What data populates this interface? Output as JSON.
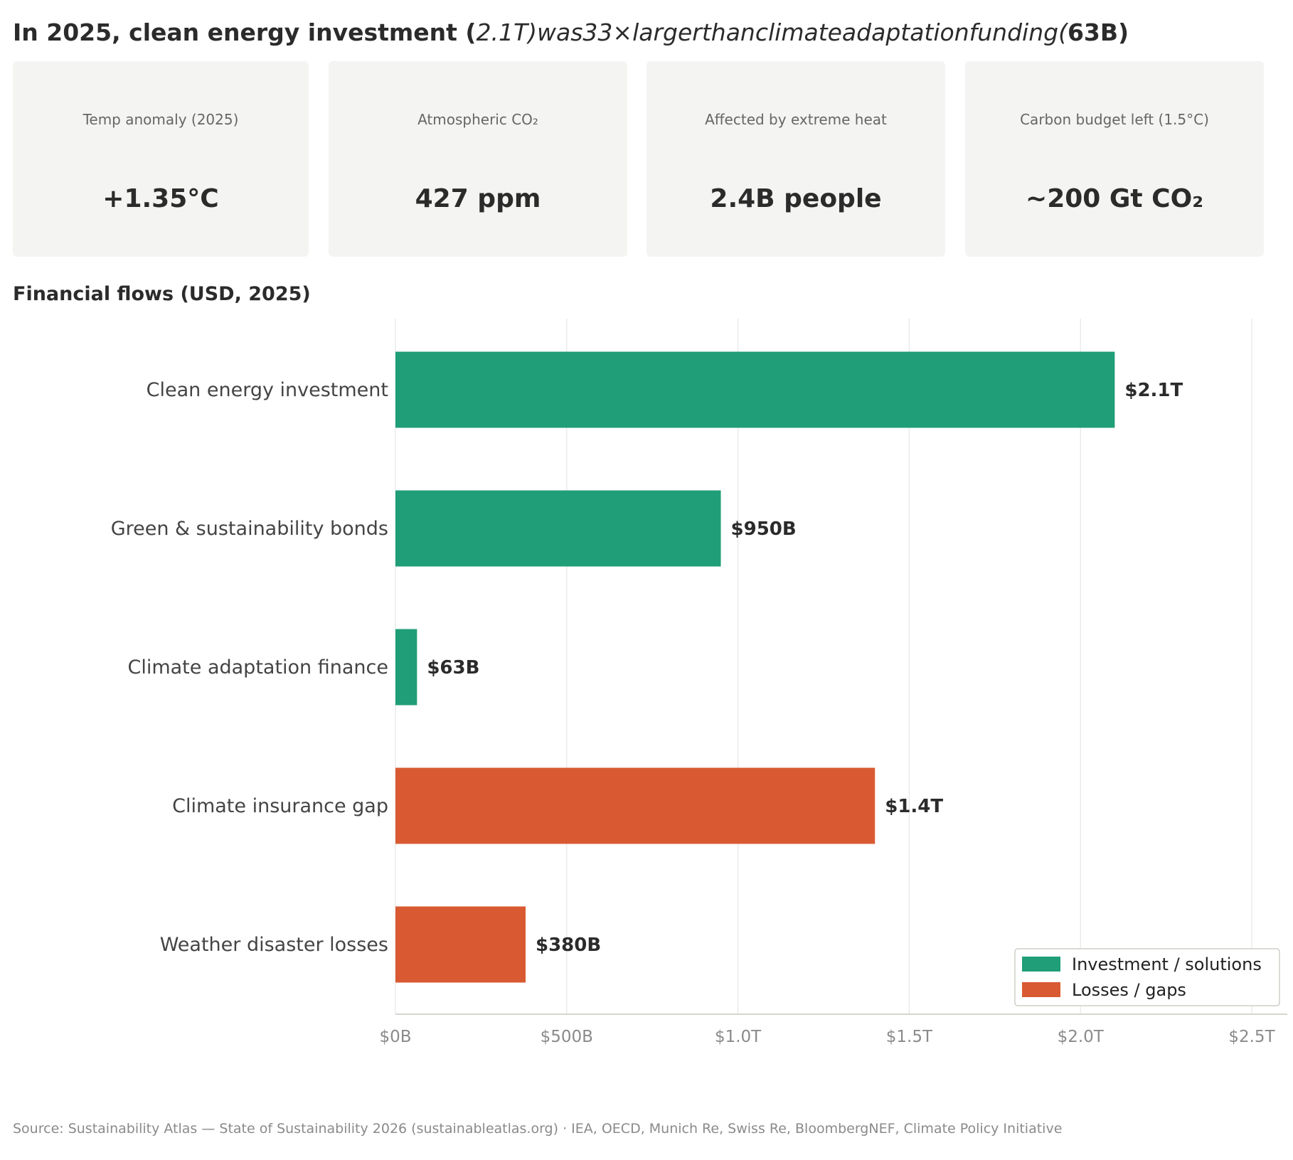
{
  "headline": {
    "prefix": "In 2025, clean energy investment (",
    "middle": "2.1T)was33×largerthanclimateadaptationfunding(",
    "suffix": "63B)"
  },
  "kpis": [
    {
      "label": "Temp anomaly (2025)",
      "value": "+1.35°C"
    },
    {
      "label": "Atmospheric CO₂",
      "value": "427 ppm"
    },
    {
      "label": "Affected by extreme heat",
      "value": "2.4B people"
    },
    {
      "label": "Carbon budget left (1.5°C)",
      "value": "~200 Gt CO₂"
    }
  ],
  "section_title": "Financial flows (USD, 2025)",
  "chart_data": {
    "type": "bar",
    "orientation": "horizontal",
    "categories": [
      "Clean energy investment",
      "Green & sustainability bonds",
      "Climate adaptation finance",
      "Climate insurance gap",
      "Weather disaster losses"
    ],
    "values_usd_billions": [
      2100,
      950,
      63,
      1400,
      380
    ],
    "data_labels": [
      "$2.1T",
      "$950B",
      "$63B",
      "$1.4T",
      "$380B"
    ],
    "groups": [
      "Investment / solutions",
      "Investment / solutions",
      "Investment / solutions",
      "Losses / gaps",
      "Losses / gaps"
    ],
    "xlim": [
      0,
      2500
    ],
    "xticks": [
      0,
      500,
      1000,
      1500,
      2000,
      2500
    ],
    "xtick_labels": [
      "$0B",
      "$500B",
      "$1.0T",
      "$1.5T",
      "$2.0T",
      "$2.5T"
    ],
    "grid": "vertical",
    "legend": {
      "position": "bottom-right",
      "entries": [
        {
          "name": "Investment / solutions",
          "color": "#1f9e77"
        },
        {
          "name": "Losses / gaps",
          "color": "#d95a32"
        }
      ]
    }
  },
  "colors": {
    "investment": "#1f9e77",
    "losses": "#d95a32",
    "card_bg": "#f4f4f2",
    "text": "#2b2b2b",
    "muted": "#8a8a8a",
    "grid": "#e6e6e6"
  },
  "source": "Source: Sustainability Atlas — State of Sustainability 2026 (sustainableatlas.org)  ·  IEA, OECD, Munich Re, Swiss Re, BloombergNEF, Climate Policy Initiative"
}
